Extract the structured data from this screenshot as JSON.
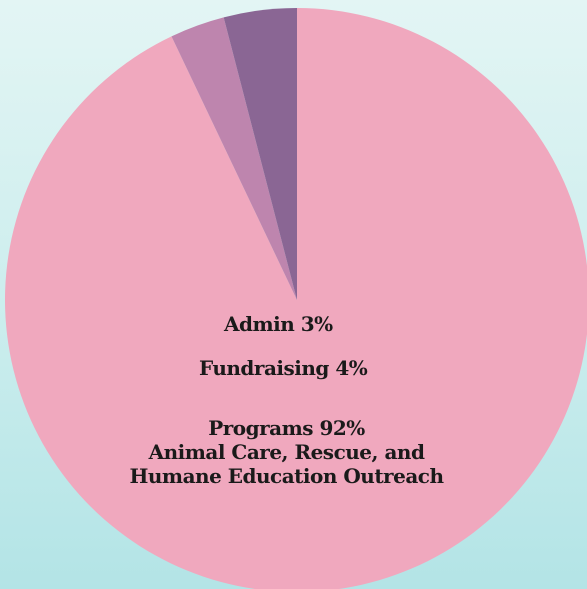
{
  "chart_data": {
    "type": "pie",
    "slices": [
      {
        "label": "Programs",
        "value": 92,
        "color": "#f0a8be"
      },
      {
        "label": "Admin",
        "value": 3,
        "color": "#be85ae"
      },
      {
        "label": "Fundraising",
        "value": 4,
        "color": "#8a6694"
      }
    ],
    "labels": {
      "admin": "Admin 3%",
      "fundraising": "Fundraising 4%",
      "programs": "Programs 92%",
      "programs_desc_line1": "Animal Care, Rescue, and",
      "programs_desc_line2": "Humane Education Outreach"
    }
  }
}
